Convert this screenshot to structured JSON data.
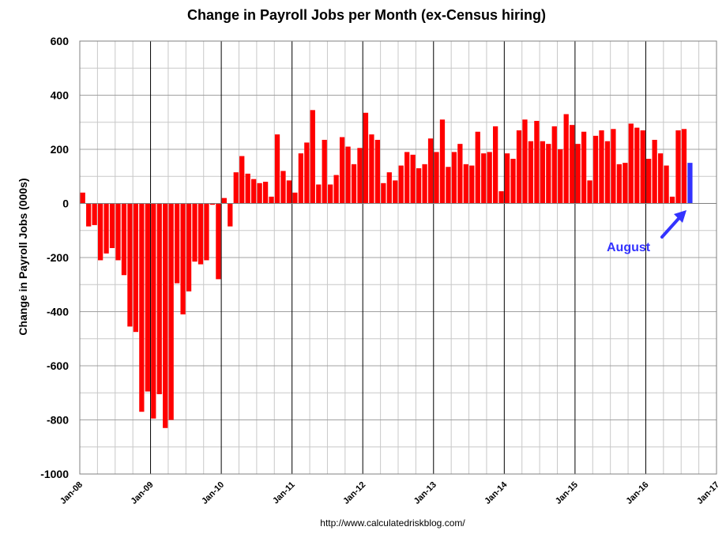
{
  "chart_data": {
    "type": "bar",
    "title": "Change in Payroll Jobs per Month (ex-Census hiring)",
    "ylabel": "Change in Payroll Jobs (000s)",
    "xlabel": "",
    "ylim": [
      -1000,
      600
    ],
    "yticks": [
      600,
      400,
      200,
      0,
      -200,
      -400,
      -600,
      -800,
      -1000
    ],
    "xlim": [
      "2008-01",
      "2017-01"
    ],
    "xticks": [
      "Jan-08",
      "Jan-09",
      "Jan-10",
      "Jan-11",
      "Jan-12",
      "Jan-13",
      "Jan-14",
      "Jan-15",
      "Jan-16",
      "Jan-17"
    ],
    "grid": true,
    "legend": "none",
    "start_month": "2008-01",
    "values": [
      40,
      -85,
      -80,
      -210,
      -185,
      -165,
      -210,
      -265,
      -455,
      -475,
      -770,
      -695,
      -795,
      -705,
      -830,
      -800,
      -295,
      -410,
      -325,
      -215,
      -225,
      -210,
      -5,
      -280,
      20,
      -85,
      115,
      175,
      110,
      90,
      75,
      80,
      25,
      255,
      120,
      85,
      40,
      185,
      225,
      345,
      70,
      235,
      70,
      105,
      245,
      210,
      145,
      205,
      335,
      255,
      235,
      75,
      115,
      85,
      140,
      190,
      180,
      130,
      145,
      240,
      190,
      310,
      135,
      190,
      220,
      145,
      140,
      265,
      185,
      190,
      285,
      45,
      185,
      165,
      270,
      310,
      230,
      305,
      230,
      220,
      285,
      200,
      330,
      290,
      220,
      265,
      85,
      250,
      270,
      230,
      275,
      145,
      150,
      295,
      280,
      270,
      165,
      235,
      185,
      140,
      25,
      270,
      275,
      150
    ],
    "highlight_index": 103,
    "bar_color": "#ff0000",
    "highlight_color": "#3333ff",
    "annotations": [
      {
        "text": "August",
        "color": "#3333ff",
        "points_to_index": 103
      }
    ]
  },
  "source_text": "http://www.calculatedriskblog.com/"
}
